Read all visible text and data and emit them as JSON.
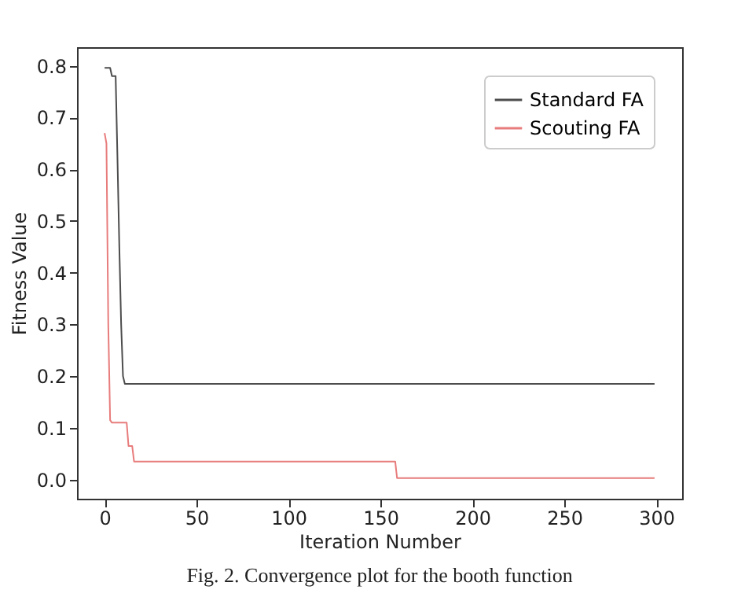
{
  "chart_data": {
    "type": "line",
    "xlabel": "Iteration Number",
    "ylabel": "Fitness Value",
    "annotations": [
      "Fig. 2.    Convergence plot for the booth function"
    ],
    "xlim": [
      -15,
      314
    ],
    "xticks": [
      0,
      50,
      100,
      150,
      200,
      250,
      300
    ],
    "ylim": [
      -0.037,
      0.836
    ],
    "yticks": [
      {
        "value": 0,
        "label": "0.0"
      },
      0.1,
      0.2,
      0.3,
      0.4,
      0.5,
      0.6,
      0.7,
      0.8
    ],
    "grid": false,
    "legend": "top right",
    "marker": "none",
    "line_style": "solid",
    "series": [
      {
        "name": "Standard FA",
        "color": "#4d4d4d",
        "x": [
          0,
          3,
          4,
          6,
          7,
          8,
          9,
          10,
          11,
          299
        ],
        "values": [
          0.796,
          0.796,
          0.78,
          0.78,
          0.62,
          0.45,
          0.3,
          0.2,
          0.185,
          0.185
        ]
      },
      {
        "name": "Scouting FA",
        "color": "#e87c7c",
        "x": [
          0,
          1,
          2,
          3,
          4,
          12,
          13,
          15,
          16,
          158,
          159,
          299
        ],
        "values": [
          0.67,
          0.65,
          0.3,
          0.115,
          0.11,
          0.11,
          0.065,
          0.065,
          0.035,
          0.035,
          0.003,
          0.003
        ]
      }
    ]
  }
}
